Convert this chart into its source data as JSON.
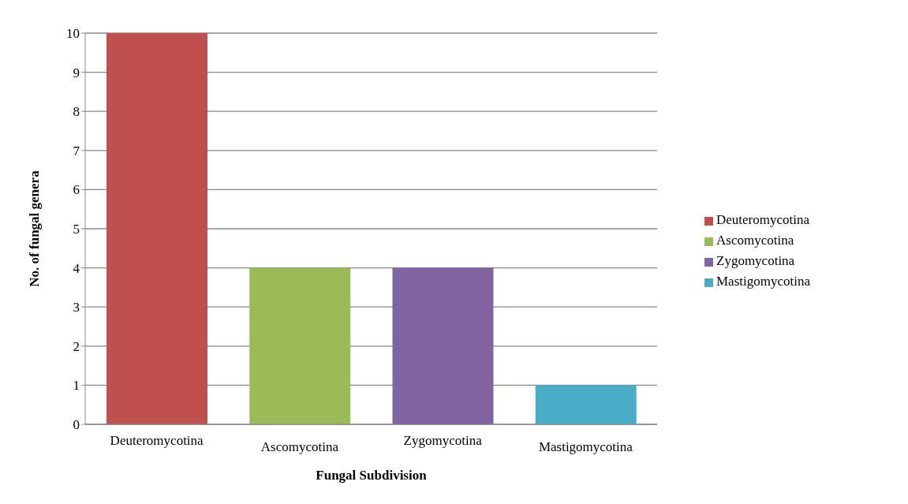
{
  "chart_data": {
    "type": "bar",
    "xlabel": "Fungal Subdivision",
    "ylabel": "No. of fungal genera",
    "categories": [
      "Deuteromycotina",
      "Ascomycotina",
      "Zygomycotina",
      "Mastigomycotina"
    ],
    "series": [
      {
        "name": "Deuteromycotina",
        "color": "#c0504d",
        "values": [
          10,
          null,
          null,
          null
        ]
      },
      {
        "name": "Ascomycotina",
        "color": "#9bbb59",
        "values": [
          null,
          4,
          null,
          null
        ]
      },
      {
        "name": "Zygomycotina",
        "color": "#8064a2",
        "values": [
          null,
          null,
          4,
          null
        ]
      },
      {
        "name": "Mastigomycotina",
        "color": "#4bacc6",
        "values": [
          null,
          null,
          null,
          1
        ]
      }
    ],
    "stacked": true,
    "ylim": [
      0,
      10
    ],
    "yticks": [
      0,
      1,
      2,
      3,
      4,
      5,
      6,
      7,
      8,
      9,
      10
    ],
    "grid": "y",
    "legend": "right"
  }
}
